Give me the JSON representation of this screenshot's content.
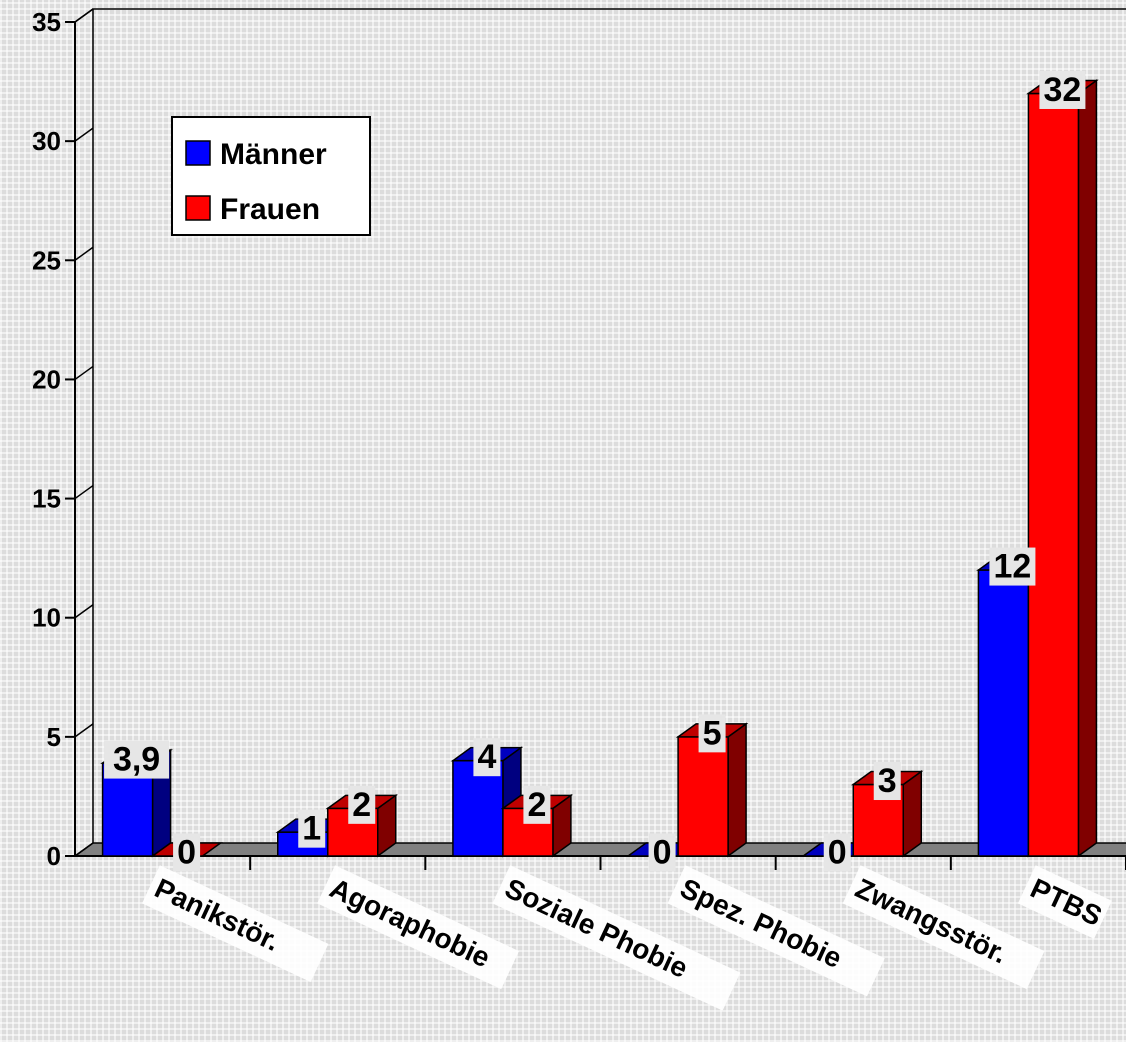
{
  "chart_data": {
    "type": "bar",
    "categories": [
      "Panikstör.",
      "Agoraphobie",
      "Soziale Phobie",
      "Spez. Phobie",
      "Zwangsstör.",
      "PTBS"
    ],
    "series": [
      {
        "name": "Männer",
        "color": "#0000ff",
        "values": [
          3.9,
          1,
          4,
          0,
          0,
          12
        ],
        "labels": [
          "3,9",
          "1",
          "4",
          "0",
          "0",
          "12"
        ]
      },
      {
        "name": "Frauen",
        "color": "#ff0000",
        "values": [
          0,
          2,
          2,
          5,
          3,
          32
        ],
        "labels": [
          "0",
          "2",
          "2",
          "5",
          "3",
          "32"
        ]
      }
    ],
    "ylim": [
      0,
      35
    ],
    "yticks": [
      0,
      5,
      10,
      15,
      20,
      25,
      30,
      35
    ],
    "legend_position": "top-left",
    "grid": true
  }
}
